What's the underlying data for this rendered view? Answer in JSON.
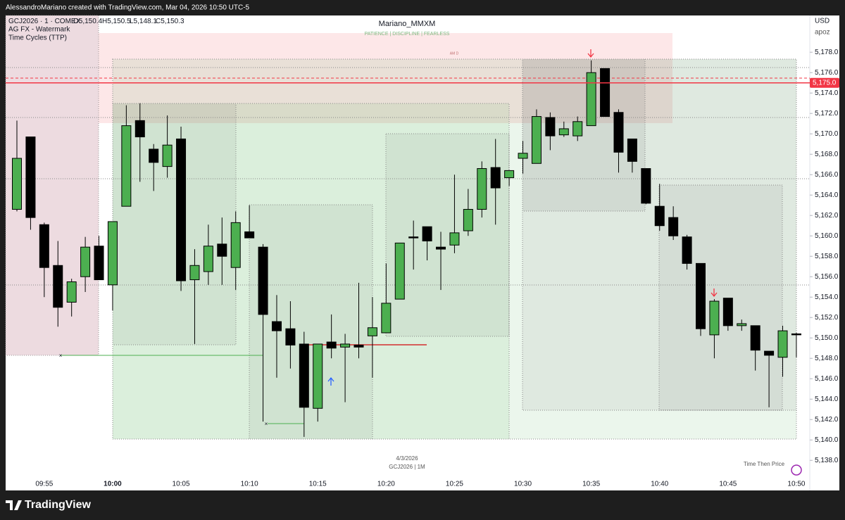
{
  "header": "AlessandroMariano created with TradingView.com, Mar 04, 2026 10:50 UTC-5",
  "legend": {
    "symbol": "GCJ2026 · 1 · COMEX",
    "open": "O5,150.4",
    "high": "H5,150.5",
    "low": "L5,148.1",
    "close": "C5,150.3",
    "indicators": [
      "AG FX - Watermark",
      "Time Cycles (TTP)"
    ]
  },
  "watermark": {
    "title": "Mariano_MMXM",
    "subtitle": "PATIENCE  |  DISCIPLINE  |  FEARLESS",
    "box_label": "AM D",
    "date": "4/3/2026",
    "symbol": "GCJ2026 | 1M",
    "brand": "Time Then Price"
  },
  "axis_header": {
    "currency": "USD",
    "user": "apoz"
  },
  "footer": {
    "logo": "TradingView"
  },
  "chart_data": {
    "type": "candlestick",
    "up_color": "#4caf50",
    "down_color": "#000000",
    "grid": false,
    "categories": [
      null,
      null,
      "09:55",
      null,
      null,
      null,
      null,
      "10:00",
      null,
      null,
      null,
      null,
      "10:05",
      null,
      null,
      null,
      null,
      "10:10",
      null,
      null,
      null,
      null,
      "10:15",
      null,
      null,
      null,
      null,
      "10:20",
      null,
      null,
      null,
      null,
      "10:25",
      null,
      null,
      null,
      null,
      "10:30",
      null,
      null,
      null,
      null,
      "10:35",
      null,
      null,
      null,
      null,
      "10:40",
      null,
      null,
      null,
      null,
      "10:45",
      null,
      null,
      null,
      null,
      "10:50"
    ],
    "open": [
      5162.6,
      5169.7,
      5161.1,
      5157.1,
      5153.5,
      5156.0,
      5159.0,
      5155.2,
      5162.9,
      5171.3,
      5168.5,
      5166.8,
      5169.5,
      5155.7,
      5156.5,
      5159.2,
      5156.9,
      5160.4,
      5158.9,
      5151.6,
      5150.9,
      5149.4,
      5143.1,
      5149.6,
      5149.1,
      5149.3,
      5150.2,
      5150.5,
      5153.8,
      5159.9,
      5160.9,
      5158.9,
      5159.1,
      5160.5,
      5162.6,
      5166.7,
      5165.7,
      5167.6,
      5167.1,
      5171.6,
      5169.9,
      5169.8,
      5170.8,
      5176.4,
      5172.1,
      5169.5,
      5166.6,
      5162.9,
      5161.8,
      5159.9,
      5157.3,
      5150.3,
      5153.9,
      5151.2,
      5151.2,
      5148.7,
      5148.1,
      5150.4
    ],
    "high": [
      5171.3,
      5169.7,
      5161.3,
      5159.5,
      5155.8,
      5159.9,
      5160.0,
      5161.4,
      5172.8,
      5173.0,
      5169.0,
      5171.8,
      5170.7,
      5158.7,
      5161.1,
      5161.8,
      5162.4,
      5163.0,
      5159.2,
      5154.2,
      5153.6,
      5150.6,
      5149.4,
      5152.3,
      5150.4,
      5155.4,
      5154.0,
      5157.3,
      5159.3,
      5161.5,
      5160.9,
      5160.4,
      5166.0,
      5164.6,
      5167.3,
      5169.5,
      5166.4,
      5169.3,
      5172.4,
      5172.1,
      5171.2,
      5171.7,
      5177.2,
      5176.4,
      5172.4,
      5169.5,
      5166.6,
      5165.1,
      5162.9,
      5160.1,
      5157.3,
      5153.8,
      5153.9,
      5151.8,
      5151.2,
      5148.7,
      5151.2,
      5150.5
    ],
    "low": [
      5162.4,
      5160.6,
      5154.0,
      5151.1,
      5152.1,
      5154.5,
      5155.7,
      5152.7,
      5162.9,
      5165.3,
      5164.4,
      5165.7,
      5154.6,
      5149.4,
      5155.2,
      5155.2,
      5154.7,
      5159.8,
      5141.8,
      5146.1,
      5147.0,
      5140.3,
      5141.8,
      5148.0,
      5143.7,
      5148.0,
      5146.1,
      5150.5,
      5153.8,
      5156.7,
      5157.6,
      5154.7,
      5158.3,
      5160.0,
      5161.8,
      5161.1,
      5164.9,
      5166.1,
      5167.1,
      5168.4,
      5169.7,
      5169.3,
      5170.8,
      5171.7,
      5166.2,
      5166.2,
      5163.1,
      5160.5,
      5159.6,
      5156.7,
      5150.2,
      5148.0,
      5150.7,
      5150.7,
      5146.8,
      5143.2,
      5146.2,
      5148.1
    ],
    "close": [
      5167.6,
      5161.8,
      5156.9,
      5153.0,
      5155.5,
      5158.9,
      5155.7,
      5161.4,
      5170.8,
      5169.7,
      5167.2,
      5168.9,
      5155.6,
      5157.1,
      5159.0,
      5158.0,
      5161.3,
      5159.8,
      5152.3,
      5150.7,
      5149.3,
      5143.2,
      5149.4,
      5149.0,
      5149.4,
      5149.1,
      5151.0,
      5153.4,
      5159.3,
      5159.8,
      5159.5,
      5158.7,
      5160.3,
      5162.6,
      5166.6,
      5164.7,
      5166.4,
      5168.1,
      5171.7,
      5169.8,
      5170.5,
      5171.2,
      5176.0,
      5171.7,
      5168.2,
      5167.3,
      5163.2,
      5161.0,
      5160.0,
      5157.3,
      5150.9,
      5153.6,
      5151.2,
      5151.4,
      5148.8,
      5148.3,
      5150.7,
      5150.3
    ],
    "ylim": [
      5136.5,
      5181.6
    ],
    "yticks": [
      {
        "value": 5138,
        "label": "5,138.0"
      },
      {
        "value": 5140,
        "label": "5,140.0"
      },
      {
        "value": 5142,
        "label": "5,142.0"
      },
      {
        "value": 5144,
        "label": "5,144.0"
      },
      {
        "value": 5146,
        "label": "5,146.0"
      },
      {
        "value": 5148,
        "label": "5,148.0"
      },
      {
        "value": 5150,
        "label": "5,150.0"
      },
      {
        "value": 5152,
        "label": "5,152.0"
      },
      {
        "value": 5154,
        "label": "5,154.0"
      },
      {
        "value": 5156,
        "label": "5,156.0"
      },
      {
        "value": 5158,
        "label": "5,158.0"
      },
      {
        "value": 5160,
        "label": "5,160.0"
      },
      {
        "value": 5162,
        "label": "5,162.0"
      },
      {
        "value": 5164,
        "label": "5,164.0"
      },
      {
        "value": 5166,
        "label": "5,166.0"
      },
      {
        "value": 5168,
        "label": "5,168.0"
      },
      {
        "value": 5170,
        "label": "5,170.0"
      },
      {
        "value": 5172,
        "label": "5,172.0"
      },
      {
        "value": 5174,
        "label": "5,174.0"
      },
      {
        "value": 5176,
        "label": "5,176.0"
      },
      {
        "value": 5178,
        "label": "5,178.0"
      }
    ],
    "price_line": {
      "value": 5175,
      "label": "5,175.0",
      "color": "#f23645"
    }
  }
}
